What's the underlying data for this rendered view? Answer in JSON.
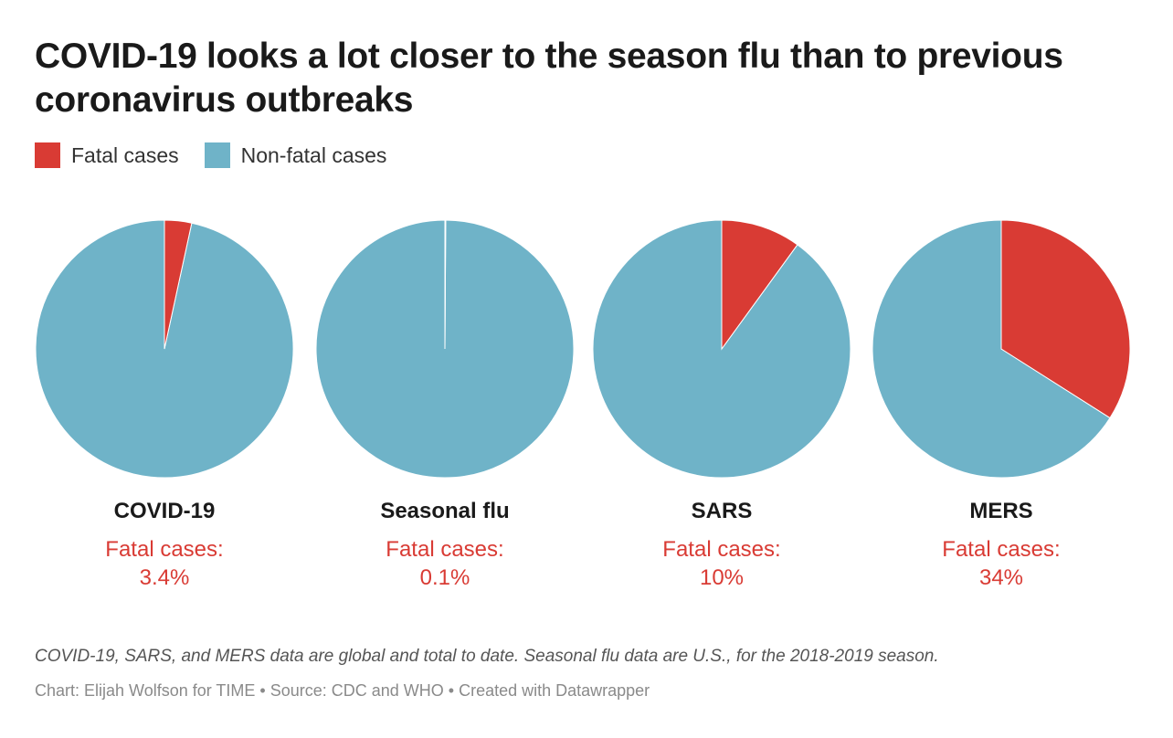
{
  "title": "COVID-19 looks a lot closer to the season flu than to previous coronavirus outbreaks",
  "legend": [
    {
      "label": "Fatal cases",
      "color": "#d93b34"
    },
    {
      "label": "Non-fatal cases",
      "color": "#6fb3c8"
    }
  ],
  "chart_data": {
    "type": "pie",
    "title": "COVID-19 looks a lot closer to the season flu than to previous coronavirus outbreaks",
    "series_labels": [
      "Fatal cases",
      "Non-fatal cases"
    ],
    "colors": {
      "fatal": "#d93b34",
      "nonfatal": "#6fb3c8"
    },
    "pies": [
      {
        "name": "COVID-19",
        "fatal_label": "Fatal cases:",
        "fatal_text": "3.4%",
        "fatal": 3.4,
        "nonfatal": 96.6
      },
      {
        "name": "Seasonal flu",
        "fatal_label": "Fatal cases:",
        "fatal_text": "0.1%",
        "fatal": 0.1,
        "nonfatal": 99.9
      },
      {
        "name": "SARS",
        "fatal_label": "Fatal cases:",
        "fatal_text": "10%",
        "fatal": 10,
        "nonfatal": 90
      },
      {
        "name": "MERS",
        "fatal_label": "Fatal cases:",
        "fatal_text": "34%",
        "fatal": 34,
        "nonfatal": 66
      }
    ]
  },
  "footer": {
    "note": "COVID-19, SARS, and MERS data are global and total to date. Seasonal flu data are U.S., for the 2018-2019 season.",
    "credit": "Chart: Elijah Wolfson for TIME • Source: CDC and WHO • Created with Datawrapper"
  }
}
